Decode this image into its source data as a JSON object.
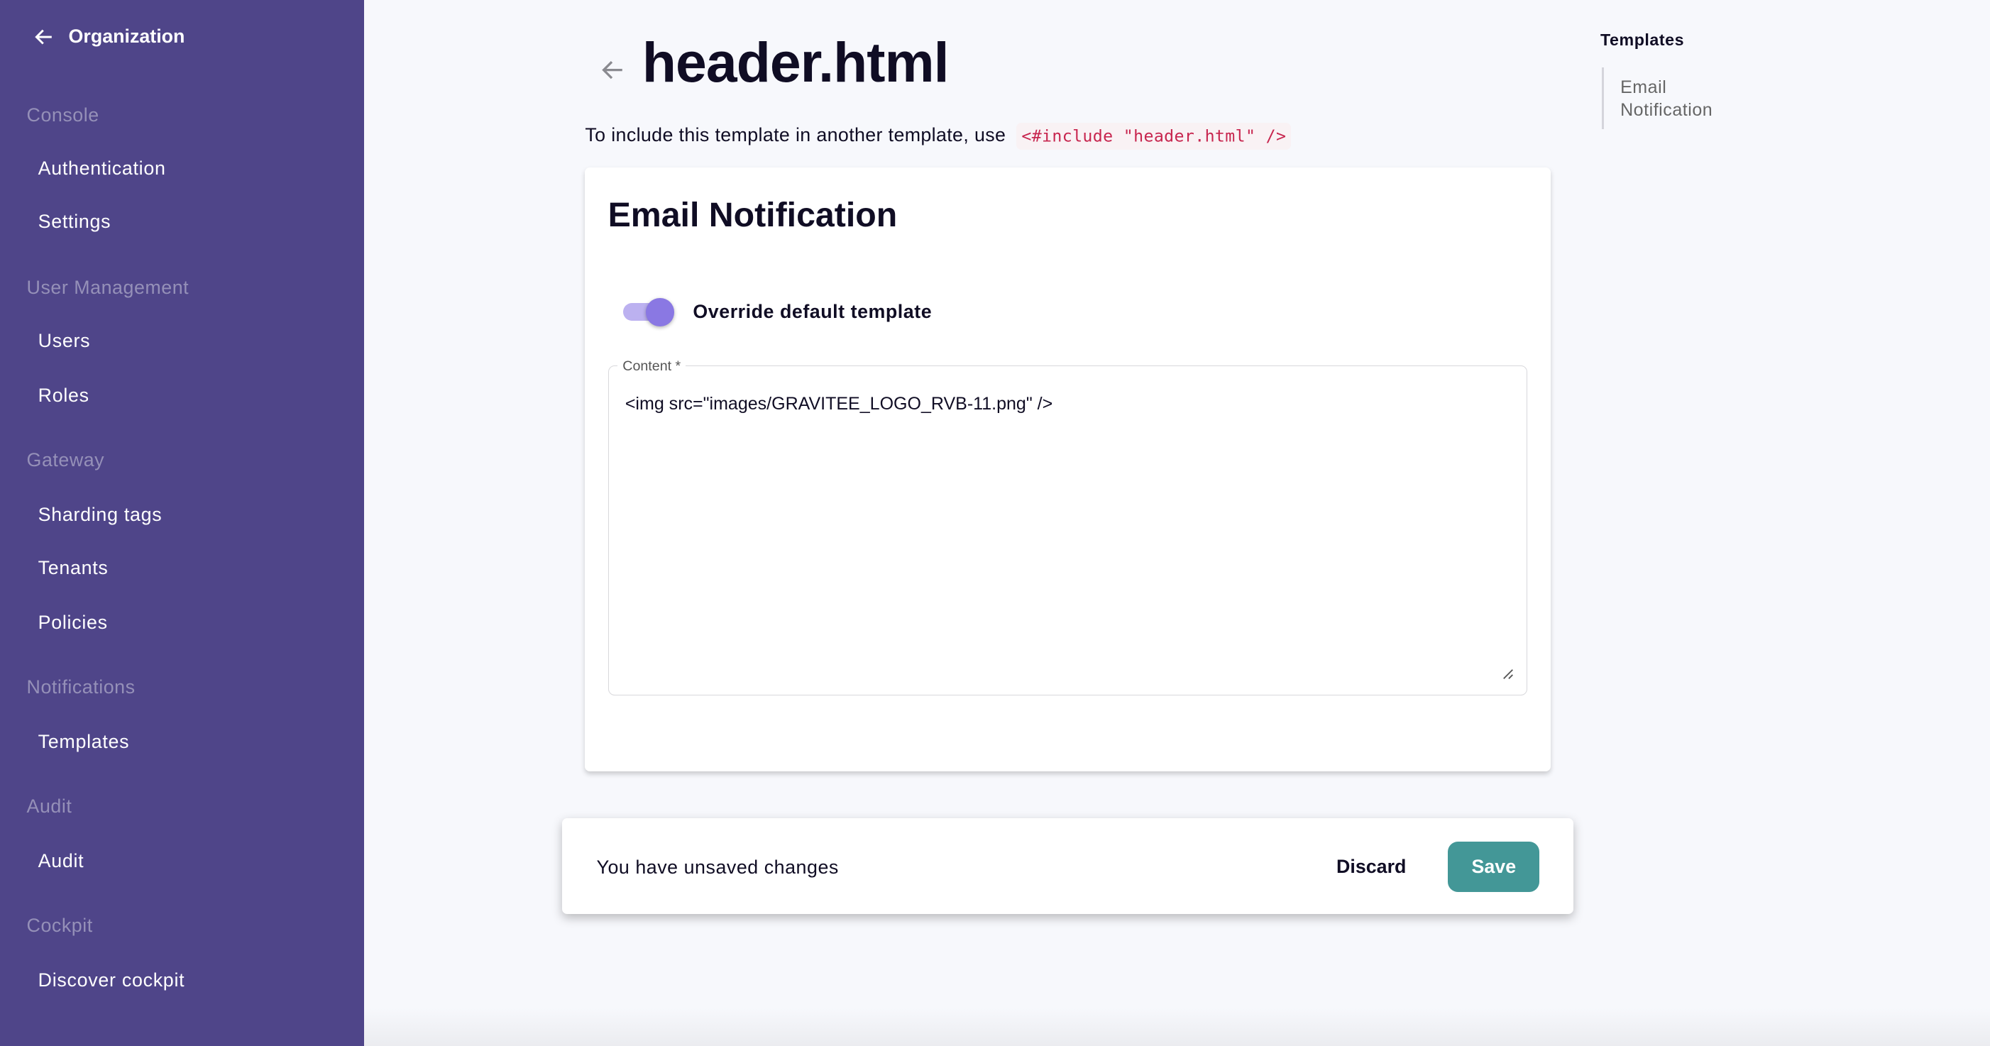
{
  "sidebar": {
    "back_label": "Organization",
    "sections": [
      {
        "title": "Console",
        "items": [
          "Authentication",
          "Settings"
        ]
      },
      {
        "title": "User Management",
        "items": [
          "Users",
          "Roles"
        ]
      },
      {
        "title": "Gateway",
        "items": [
          "Sharding tags",
          "Tenants",
          "Policies"
        ]
      },
      {
        "title": "Notifications",
        "items": [
          "Templates"
        ]
      },
      {
        "title": "Audit",
        "items": [
          "Audit"
        ]
      },
      {
        "title": "Cockpit",
        "items": [
          "Discover cockpit"
        ]
      }
    ]
  },
  "page": {
    "title": "header.html",
    "hint": "To include this template in another template, use",
    "include_code": "<#include \"header.html\" />"
  },
  "card": {
    "title": "Email Notification",
    "override_label": "Override default template",
    "override_enabled": true,
    "content_label": "Content *",
    "content_value": "<img src=\"images/GRAVITEE_LOGO_RVB-11.png\" />"
  },
  "save_bar": {
    "message": "You have unsaved changes",
    "discard_label": "Discard",
    "save_label": "Save"
  },
  "toc": {
    "title": "Templates",
    "items": [
      "Email Notification"
    ]
  },
  "colors": {
    "sidebar": "#4f4589",
    "accent": "#8a78e3",
    "save": "#439797"
  }
}
